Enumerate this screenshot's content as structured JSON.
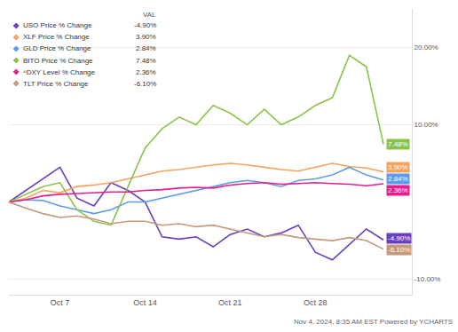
{
  "chart_data": {
    "type": "line",
    "legend_title": "VAL",
    "source": "Nov 4, 2024, 8:35 AM EST Powered by YCHARTS",
    "categories": [
      null,
      null,
      null,
      "Oct 7",
      null,
      null,
      null,
      null,
      "Oct 14",
      null,
      null,
      null,
      null,
      "Oct 21",
      null,
      null,
      null,
      null,
      "Oct 28",
      null,
      null,
      null,
      null
    ],
    "ylim": [
      -12,
      25
    ],
    "yticks": [
      {
        "value": -10,
        "label": "-10.00%"
      },
      {
        "value": 10,
        "label": "10.00%"
      },
      {
        "value": 20,
        "label": "20.00%"
      }
    ],
    "grid": true,
    "legend": "upper left",
    "series": [
      {
        "name": "USO Price % Change",
        "color": "#6a3fbf",
        "values": [
          0,
          1.5,
          3.0,
          4.5,
          0.5,
          -0.5,
          2.5,
          1.5,
          0.0,
          -4.5,
          -4.8,
          -4.5,
          -5.8,
          -4.2,
          -3.5,
          -4.5,
          -4.0,
          -3.0,
          -6.5,
          -7.5,
          -5.5,
          -3.5,
          -4.9
        ],
        "value_labels": [
          null,
          null,
          null,
          null,
          null,
          null,
          null,
          null,
          null,
          null,
          null,
          null,
          null,
          null,
          null,
          null,
          null,
          null,
          null,
          null,
          null,
          null,
          "-4.90%"
        ]
      },
      {
        "name": "XLF Price % Change",
        "color": "#f7a35c",
        "values": [
          0,
          0.5,
          1.5,
          1.2,
          2.0,
          2.2,
          2.5,
          3.0,
          3.5,
          4.0,
          4.2,
          4.5,
          4.8,
          5.0,
          4.8,
          4.5,
          4.2,
          4.0,
          4.5,
          5.0,
          4.6,
          4.4,
          3.9
        ],
        "value_labels": [
          null,
          null,
          null,
          null,
          null,
          null,
          null,
          null,
          null,
          null,
          null,
          null,
          null,
          null,
          null,
          null,
          null,
          null,
          null,
          null,
          null,
          null,
          "3.90%"
        ]
      },
      {
        "name": "GLD Price % Change",
        "color": "#5d9cec",
        "values": [
          0,
          0.3,
          0.2,
          -0.5,
          -1.0,
          -1.5,
          -1.0,
          0.0,
          0.0,
          0.5,
          1.0,
          1.5,
          2.0,
          2.5,
          2.8,
          2.5,
          2.0,
          2.8,
          3.0,
          3.5,
          4.5,
          3.5,
          2.84
        ],
        "value_labels": [
          null,
          null,
          null,
          null,
          null,
          null,
          null,
          null,
          null,
          null,
          null,
          null,
          null,
          null,
          null,
          null,
          null,
          null,
          null,
          null,
          null,
          null,
          "2.84%"
        ]
      },
      {
        "name": "BITO Price % Change",
        "color": "#8bc34a",
        "values": [
          0,
          1.0,
          2.0,
          2.5,
          -1.0,
          -2.5,
          -3.0,
          2.0,
          7.0,
          9.5,
          11.0,
          10.0,
          12.5,
          11.5,
          10.0,
          12.0,
          10.0,
          11.0,
          12.5,
          13.5,
          19.0,
          17.5,
          7.48
        ],
        "value_labels": [
          null,
          null,
          null,
          null,
          null,
          null,
          null,
          null,
          null,
          null,
          null,
          null,
          null,
          null,
          null,
          null,
          null,
          null,
          null,
          null,
          null,
          null,
          "7.48%"
        ]
      },
      {
        "name": "^DXY Level % Change",
        "color": "#e91e8c",
        "values": [
          0,
          0.3,
          0.8,
          1.0,
          1.1,
          1.2,
          1.3,
          1.3,
          1.5,
          1.6,
          1.8,
          1.9,
          1.8,
          2.2,
          2.4,
          2.5,
          2.3,
          2.4,
          2.5,
          2.4,
          2.3,
          2.1,
          2.36
        ],
        "value_labels": [
          null,
          null,
          null,
          null,
          null,
          null,
          null,
          null,
          null,
          null,
          null,
          null,
          null,
          null,
          null,
          null,
          null,
          null,
          null,
          null,
          null,
          null,
          "2.36%"
        ]
      },
      {
        "name": "TLT Price % Change",
        "color": "#c49a7a",
        "values": [
          0,
          -0.8,
          -1.5,
          -2.0,
          -1.8,
          -2.2,
          -2.8,
          -2.5,
          -2.5,
          -3.0,
          -2.8,
          -3.2,
          -3.0,
          -3.5,
          -4.0,
          -4.5,
          -4.2,
          -4.6,
          -4.8,
          -5.0,
          -4.6,
          -5.0,
          -6.1
        ],
        "value_labels": [
          null,
          null,
          null,
          null,
          null,
          null,
          null,
          null,
          null,
          null,
          null,
          null,
          null,
          null,
          null,
          null,
          null,
          null,
          null,
          null,
          null,
          null,
          "-6.10%"
        ]
      }
    ]
  }
}
